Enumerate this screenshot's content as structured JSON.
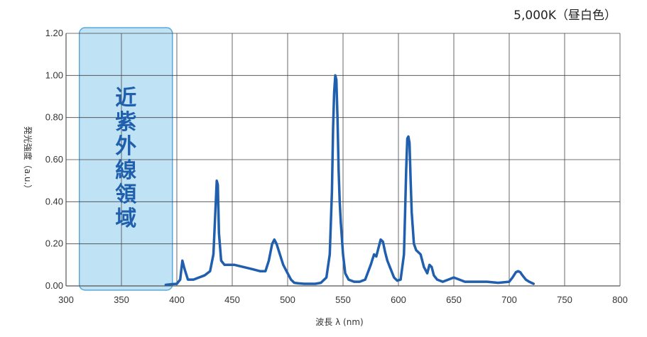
{
  "chart_data": {
    "type": "line",
    "title": "5,000K（昼白色）",
    "xlabel": "波長 λ (nm)",
    "ylabel": "発光強度（a.u.）",
    "xlim": [
      300,
      800
    ],
    "ylim": [
      0,
      1.2
    ],
    "x_ticks": [
      300,
      350,
      400,
      450,
      500,
      550,
      600,
      650,
      700,
      750,
      800
    ],
    "x_tick_labels": [
      "300",
      "350",
      "400",
      "450",
      "500",
      "550",
      "600",
      "650",
      "700",
      "750",
      "800"
    ],
    "y_ticks": [
      0,
      0.2,
      0.4,
      0.6,
      0.8,
      1.0,
      1.2
    ],
    "y_tick_labels": [
      "0.00",
      "0.20",
      "0.40",
      "0.60",
      "0.80",
      "1.00",
      "1.20"
    ],
    "grid": true,
    "line_color": "#1f5fae",
    "region": {
      "label": "近紫外線領域",
      "x_range": [
        312,
        396
      ],
      "fill_color": "#bfe3f5",
      "border_color": "#5aa7d8",
      "text_color": "#1f5fae"
    },
    "series": [
      {
        "x": [
          390,
          395,
          400,
          403,
          405,
          407,
          410,
          415,
          420,
          425,
          430,
          433,
          435,
          436,
          437,
          438,
          440,
          443,
          447,
          452,
          460,
          468,
          475,
          480,
          483,
          486,
          488,
          490,
          493,
          496,
          500,
          503,
          506,
          510,
          515,
          520,
          525,
          530,
          535,
          538,
          540,
          541,
          542,
          543,
          544,
          545,
          546,
          547,
          548,
          550,
          552,
          555,
          560,
          565,
          570,
          575,
          578,
          580,
          582,
          584,
          586,
          588,
          590,
          593,
          596,
          599,
          602,
          605,
          606,
          607,
          608,
          609,
          610,
          611,
          612,
          614,
          616,
          620,
          623,
          626,
          628,
          630,
          632,
          635,
          640,
          645,
          650,
          655,
          660,
          670,
          680,
          690,
          700,
          703,
          706,
          708,
          710,
          712,
          715,
          718,
          722
        ],
        "values": [
          0.005,
          0.008,
          0.01,
          0.03,
          0.12,
          0.08,
          0.03,
          0.03,
          0.04,
          0.05,
          0.07,
          0.15,
          0.38,
          0.5,
          0.48,
          0.25,
          0.12,
          0.1,
          0.1,
          0.1,
          0.09,
          0.08,
          0.07,
          0.07,
          0.12,
          0.2,
          0.22,
          0.2,
          0.15,
          0.1,
          0.06,
          0.03,
          0.015,
          0.012,
          0.01,
          0.01,
          0.01,
          0.015,
          0.04,
          0.15,
          0.45,
          0.75,
          0.92,
          1.0,
          0.98,
          0.8,
          0.55,
          0.4,
          0.3,
          0.15,
          0.06,
          0.03,
          0.02,
          0.02,
          0.03,
          0.1,
          0.15,
          0.14,
          0.18,
          0.22,
          0.21,
          0.16,
          0.12,
          0.08,
          0.04,
          0.025,
          0.03,
          0.15,
          0.35,
          0.55,
          0.7,
          0.71,
          0.68,
          0.5,
          0.35,
          0.2,
          0.17,
          0.15,
          0.09,
          0.06,
          0.1,
          0.09,
          0.05,
          0.03,
          0.02,
          0.03,
          0.04,
          0.03,
          0.02,
          0.02,
          0.02,
          0.015,
          0.02,
          0.04,
          0.065,
          0.07,
          0.065,
          0.05,
          0.03,
          0.02,
          0.01
        ]
      }
    ]
  }
}
